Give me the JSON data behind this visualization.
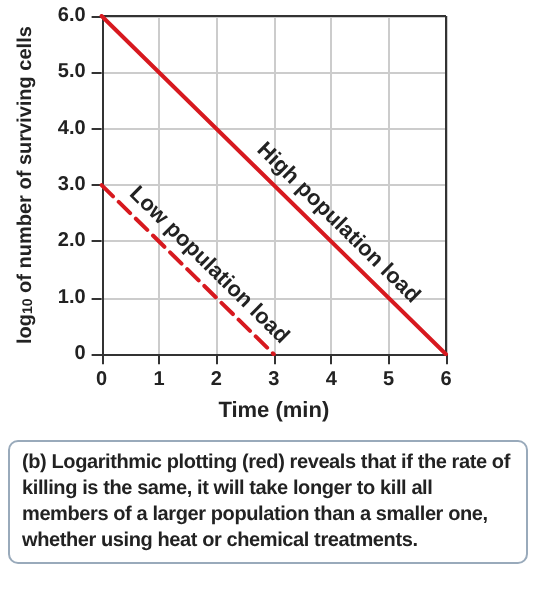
{
  "chart_data": {
    "type": "line",
    "xlabel": "Time (min)",
    "ylabel": "log$_{10}$ of number of surviving cells",
    "xlim": [
      0,
      6
    ],
    "xticks": [
      0,
      1,
      2,
      3,
      4,
      5,
      6
    ],
    "ylim": [
      0,
      6
    ],
    "yticks": [
      {
        "value": 0,
        "label": "0"
      },
      {
        "value": 1,
        "label": "1.0"
      },
      {
        "value": 2,
        "label": "2.0"
      },
      {
        "value": 3,
        "label": "3.0"
      },
      {
        "value": 4,
        "label": "4.0"
      },
      {
        "value": 5,
        "label": "5.0"
      },
      {
        "value": 6,
        "label": "6.0"
      }
    ],
    "series": [
      {
        "name": "High population load",
        "color": "#d7191f",
        "x": [
          0,
          6
        ],
        "values": [
          6,
          0
        ],
        "line_style": "solid"
      },
      {
        "name": "Low population load",
        "color": "#d7191f",
        "x": [
          0,
          3
        ],
        "values": [
          3,
          0
        ],
        "line_style": "dashed"
      }
    ],
    "grid": true,
    "legend": false,
    "marker": "none",
    "annotations": [
      "(b) Logarithmic plotting (red) reveals that if the rate of killing is the same, it will take longer to kill all members of a larger population than a smaller one, whether using heat or chemical treatments."
    ]
  }
}
